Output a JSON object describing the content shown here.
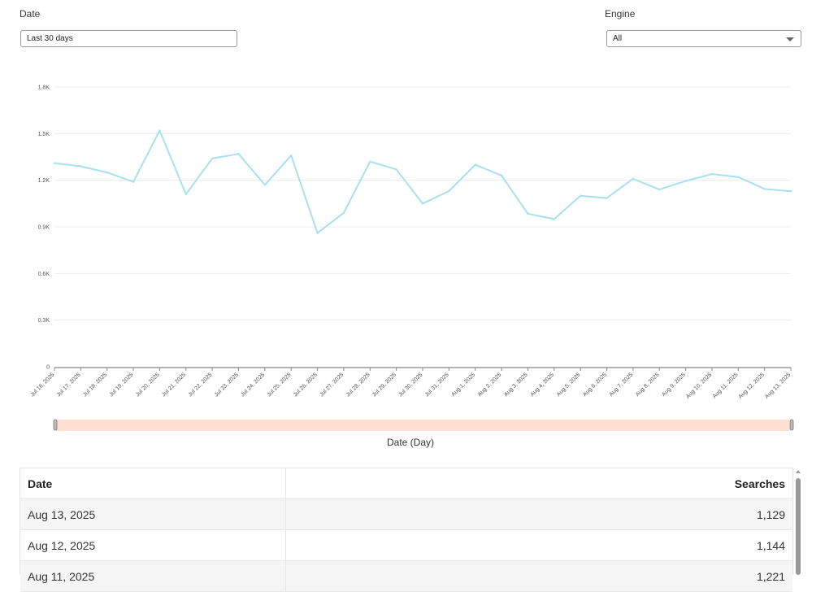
{
  "filters": {
    "date": {
      "label": "Date",
      "value": "Last 30 days"
    },
    "engine": {
      "label": "Engine",
      "value": "All"
    }
  },
  "chart_data": {
    "type": "line",
    "x": [
      "Jul 16, 2025",
      "Jul 17, 2025",
      "Jul 18, 2025",
      "Jul 19, 2025",
      "Jul 20, 2025",
      "Jul 21, 2025",
      "Jul 22, 2025",
      "Jul 23, 2025",
      "Jul 24, 2025",
      "Jul 25, 2025",
      "Jul 26, 2025",
      "Jul 27, 2025",
      "Jul 28, 2025",
      "Jul 29, 2025",
      "Jul 30, 2025",
      "Jul 31, 2025",
      "Aug 1, 2025",
      "Aug 2, 2025",
      "Aug 3, 2025",
      "Aug 4, 2025",
      "Aug 5, 2025",
      "Aug 6, 2025",
      "Aug 7, 2025",
      "Aug 8, 2025",
      "Aug 9, 2025",
      "Aug 10, 2025",
      "Aug 11, 2025",
      "Aug 12, 2025",
      "Aug 13, 2025"
    ],
    "series": [
      {
        "values": [
          1310,
          1290,
          1250,
          1190,
          1520,
          1110,
          1340,
          1370,
          1170,
          1360,
          860,
          990,
          1320,
          1270,
          1050,
          1130,
          1300,
          1230,
          985,
          950,
          1100,
          1085,
          1210,
          1140,
          1195,
          1240,
          1221,
          1144,
          1129
        ]
      }
    ],
    "ylim": [
      0,
      1800
    ],
    "yticks": [
      0,
      300,
      600,
      900,
      1200,
      1500,
      1800
    ],
    "ytick_labels": [
      "0",
      "0.3K",
      "0.6K",
      "0.9K",
      "1.2K",
      "1.5K",
      "1.8K"
    ],
    "xlabel": "Date (Day)",
    "ylabel": "",
    "grid": true,
    "line_color": "#a8e0f0",
    "range_slider_color": "#fde0d2"
  },
  "table": {
    "columns": [
      "Date",
      "Searches"
    ],
    "rows": [
      {
        "date": "Aug 13, 2025",
        "searches": "1,129"
      },
      {
        "date": "Aug 12, 2025",
        "searches": "1,144"
      },
      {
        "date": "Aug 11, 2025",
        "searches": "1,221"
      }
    ]
  }
}
